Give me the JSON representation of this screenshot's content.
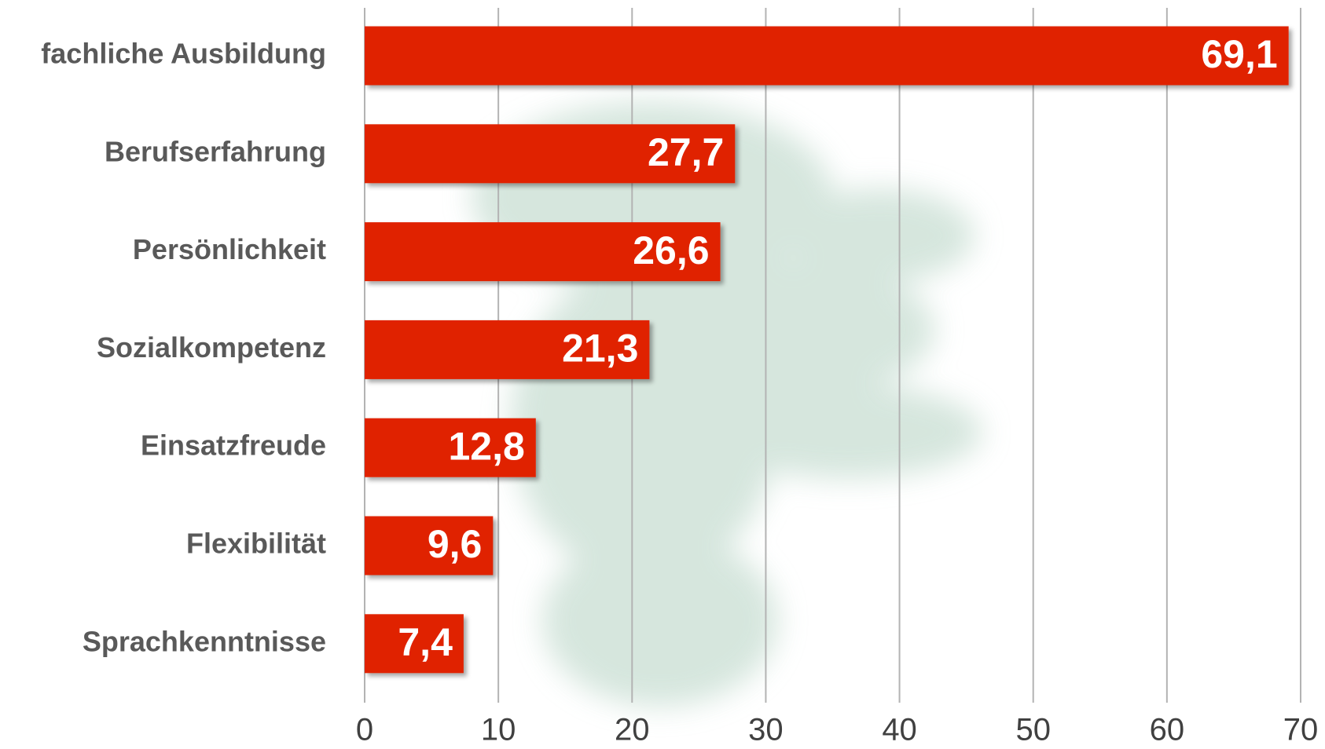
{
  "chart_data": {
    "type": "bar",
    "orientation": "horizontal",
    "categories": [
      "fachliche Ausbildung",
      "Berufserfahrung",
      "Persönlichkeit",
      "Sozialkompetenz",
      "Einsatzfreude",
      "Flexibilität",
      "Sprachkenntnisse"
    ],
    "values": [
      69.1,
      27.7,
      26.6,
      21.3,
      12.8,
      9.6,
      7.4
    ],
    "value_labels": [
      "69,1",
      "27,7",
      "26,6",
      "21,3",
      "12,8",
      "9,6",
      "7,4"
    ],
    "color": "#e02400",
    "xlim": [
      0,
      70
    ],
    "xticks": [
      0,
      10,
      20,
      30,
      40,
      50,
      60,
      70
    ],
    "grid": true
  }
}
